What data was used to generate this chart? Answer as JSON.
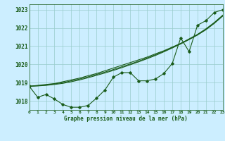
{
  "x": [
    0,
    1,
    2,
    3,
    4,
    5,
    6,
    7,
    8,
    9,
    10,
    11,
    12,
    13,
    14,
    15,
    16,
    17,
    18,
    19,
    20,
    21,
    22,
    23
  ],
  "line_main": [
    1018.8,
    1018.2,
    1018.35,
    1018.1,
    1017.8,
    1017.65,
    1017.65,
    1017.75,
    1018.15,
    1018.6,
    1019.3,
    1019.55,
    1019.55,
    1019.1,
    1019.1,
    1019.2,
    1019.5,
    1020.05,
    1021.45,
    1020.7,
    1022.15,
    1022.4,
    1022.85,
    1023.0
  ],
  "line_smooth1": [
    1018.8,
    1018.85,
    1018.9,
    1018.95,
    1019.05,
    1019.15,
    1019.25,
    1019.38,
    1019.5,
    1019.65,
    1019.8,
    1019.95,
    1020.1,
    1020.25,
    1020.4,
    1020.58,
    1020.75,
    1020.95,
    1021.15,
    1021.4,
    1021.65,
    1021.95,
    1022.3,
    1022.7
  ],
  "line_smooth2": [
    1018.8,
    1018.83,
    1018.87,
    1018.93,
    1019.0,
    1019.1,
    1019.2,
    1019.32,
    1019.45,
    1019.58,
    1019.72,
    1019.87,
    1020.02,
    1020.18,
    1020.35,
    1020.53,
    1020.72,
    1020.93,
    1021.15,
    1021.38,
    1021.63,
    1021.93,
    1022.28,
    1022.68
  ],
  "line_smooth3": [
    1018.8,
    1018.82,
    1018.85,
    1018.9,
    1018.96,
    1019.05,
    1019.15,
    1019.27,
    1019.4,
    1019.53,
    1019.67,
    1019.82,
    1019.98,
    1020.14,
    1020.31,
    1020.49,
    1020.69,
    1020.9,
    1021.12,
    1021.36,
    1021.61,
    1021.9,
    1022.25,
    1022.65
  ],
  "xlim": [
    0,
    23
  ],
  "ylim": [
    1017.5,
    1023.3
  ],
  "yticks": [
    1018,
    1019,
    1020,
    1021,
    1022,
    1023
  ],
  "xtick_labels": [
    "0",
    "1",
    "2",
    "3",
    "4",
    "5",
    "6",
    "7",
    "8",
    "9",
    "10",
    "11",
    "12",
    "13",
    "14",
    "15",
    "16",
    "17",
    "18",
    "19",
    "20",
    "21",
    "22",
    "23"
  ],
  "xlabel": "Graphe pression niveau de la mer (hPa)",
  "line_color": "#1a5c1a",
  "bg_color": "#cceeff",
  "grid_color": "#99cccc",
  "text_color": "#1a5c1a",
  "marker": "D",
  "marker_size": 1.8,
  "linewidth": 0.8
}
